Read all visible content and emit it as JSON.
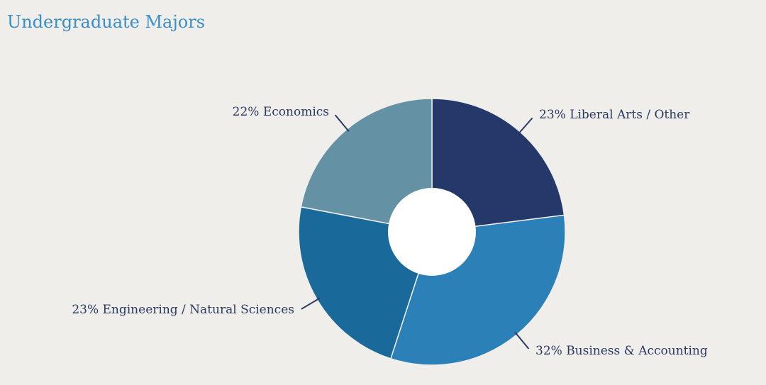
{
  "chart_data": {
    "type": "pie",
    "title": "Undergraduate Majors",
    "donut": true,
    "slices": [
      {
        "label": "Liberal Arts / Other",
        "value": 23,
        "display": "23% Liberal Arts / Other",
        "color": "#24386a"
      },
      {
        "label": "Business & Accounting",
        "value": 32,
        "display": "32% Business & Accounting",
        "color": "#2c80b8"
      },
      {
        "label": "Engineering / Natural Sciences",
        "value": 23,
        "display": "23% Engineering / Natural Sciences",
        "color": "#196a9b"
      },
      {
        "label": "Economics",
        "value": 22,
        "display": "22% Economics",
        "color": "#6491a4"
      }
    ],
    "label_color": "#2b3a62"
  }
}
